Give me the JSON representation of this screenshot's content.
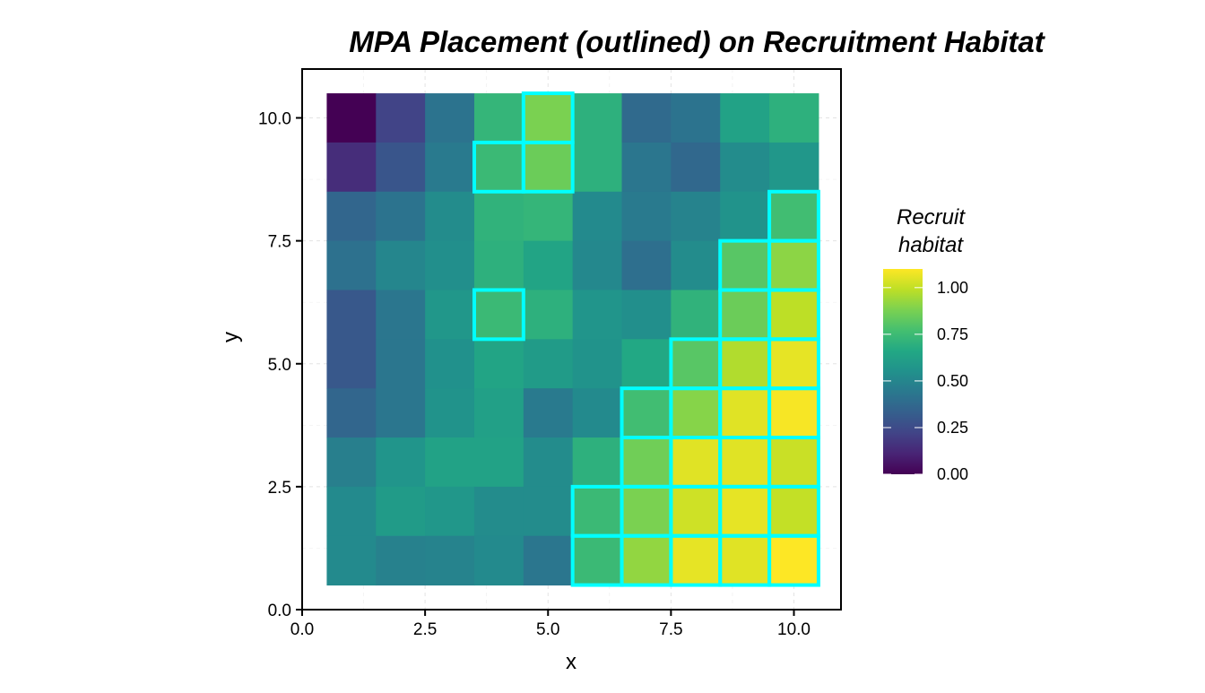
{
  "chart_data": {
    "type": "heatmap",
    "title": "MPA Placement (outlined) on Recruitment Habitat",
    "xlabel": "x",
    "ylabel": "y",
    "xlim": [
      0,
      11
    ],
    "ylim": [
      0,
      11
    ],
    "x_ticks": [
      "0.0",
      "2.5",
      "5.0",
      "7.5",
      "10.0"
    ],
    "y_ticks": [
      "0.0",
      "2.5",
      "5.0",
      "7.5",
      "10.0"
    ],
    "x_tick_values": [
      0,
      2.5,
      5,
      7.5,
      10
    ],
    "y_tick_values": [
      0,
      2.5,
      5,
      7.5,
      10
    ],
    "grid": true,
    "colormap": "viridis",
    "fill_limits": [
      0,
      1.1
    ],
    "legend": {
      "title": [
        "Recruit",
        "habitat"
      ],
      "placement": "right",
      "ticks": [
        "0.00",
        "0.25",
        "0.50",
        "0.75",
        "1.00"
      ],
      "tick_values": [
        0,
        0.25,
        0.5,
        0.75,
        1.0
      ]
    },
    "outline_color": "#00ffff",
    "x": [
      1,
      2,
      3,
      4,
      5,
      6,
      7,
      8,
      9,
      10
    ],
    "y_rows_top_to_bottom": [
      10,
      9,
      8,
      7,
      6,
      5,
      4,
      3,
      2,
      1
    ],
    "values": [
      [
        0.0,
        0.22,
        0.42,
        0.72,
        0.88,
        0.7,
        0.38,
        0.42,
        0.63,
        0.7
      ],
      [
        0.14,
        0.29,
        0.45,
        0.74,
        0.85,
        0.7,
        0.43,
        0.37,
        0.53,
        0.58
      ],
      [
        0.36,
        0.42,
        0.53,
        0.71,
        0.72,
        0.52,
        0.45,
        0.49,
        0.56,
        0.76
      ],
      [
        0.41,
        0.5,
        0.54,
        0.7,
        0.64,
        0.51,
        0.4,
        0.53,
        0.81,
        0.91
      ],
      [
        0.3,
        0.43,
        0.58,
        0.74,
        0.7,
        0.57,
        0.54,
        0.71,
        0.85,
        0.99
      ],
      [
        0.3,
        0.43,
        0.55,
        0.64,
        0.6,
        0.56,
        0.66,
        0.81,
        0.97,
        1.06
      ],
      [
        0.36,
        0.43,
        0.56,
        0.62,
        0.45,
        0.52,
        0.76,
        0.9,
        1.05,
        1.09
      ],
      [
        0.47,
        0.57,
        0.63,
        0.63,
        0.53,
        0.7,
        0.86,
        1.05,
        1.05,
        1.01
      ],
      [
        0.52,
        0.6,
        0.58,
        0.53,
        0.53,
        0.74,
        0.88,
        1.02,
        1.06,
        1.0
      ],
      [
        0.52,
        0.48,
        0.49,
        0.52,
        0.43,
        0.74,
        0.92,
        1.06,
        1.05,
        1.1
      ]
    ],
    "mpa_cells": [
      [
        5,
        10
      ],
      [
        4,
        9
      ],
      [
        5,
        9
      ],
      [
        10,
        8
      ],
      [
        9,
        7
      ],
      [
        10,
        7
      ],
      [
        4,
        6
      ],
      [
        9,
        6
      ],
      [
        10,
        6
      ],
      [
        8,
        5
      ],
      [
        9,
        5
      ],
      [
        10,
        5
      ],
      [
        7,
        4
      ],
      [
        8,
        4
      ],
      [
        9,
        4
      ],
      [
        10,
        4
      ],
      [
        7,
        3
      ],
      [
        8,
        3
      ],
      [
        9,
        3
      ],
      [
        10,
        3
      ],
      [
        6,
        2
      ],
      [
        7,
        2
      ],
      [
        8,
        2
      ],
      [
        9,
        2
      ],
      [
        10,
        2
      ],
      [
        6,
        1
      ],
      [
        7,
        1
      ],
      [
        8,
        1
      ],
      [
        9,
        1
      ],
      [
        10,
        1
      ]
    ]
  }
}
